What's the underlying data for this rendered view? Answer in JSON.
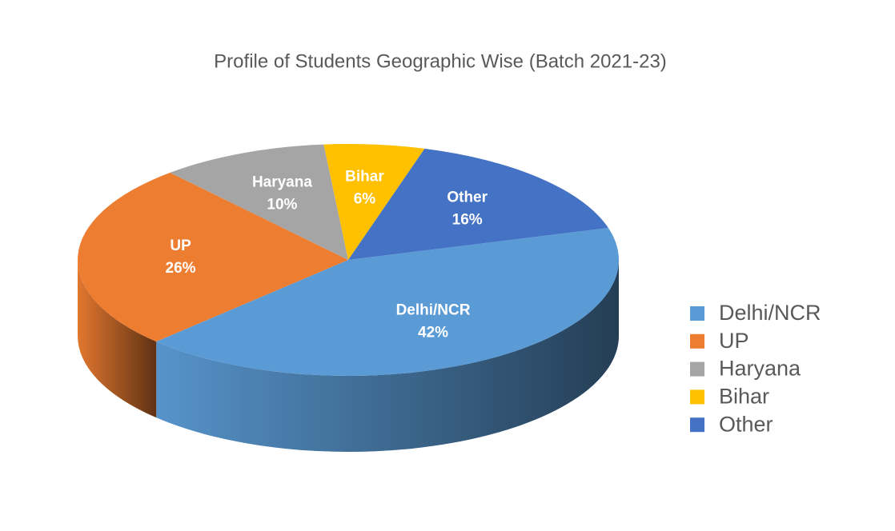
{
  "chart_data": {
    "type": "pie",
    "title": "Profile of Students Geographic Wise (Batch 2021-23)",
    "categories": [
      "Delhi/NCR",
      "UP",
      "Haryana",
      "Bihar",
      "Other"
    ],
    "values": [
      42,
      26,
      10,
      6,
      16
    ],
    "value_labels": [
      "42%",
      "26%",
      "10%",
      "6%",
      "16%"
    ],
    "colors": [
      "#5b9bd5",
      "#ed7d31",
      "#a5a5a5",
      "#ffc000",
      "#4472c4"
    ],
    "legend": "right"
  }
}
